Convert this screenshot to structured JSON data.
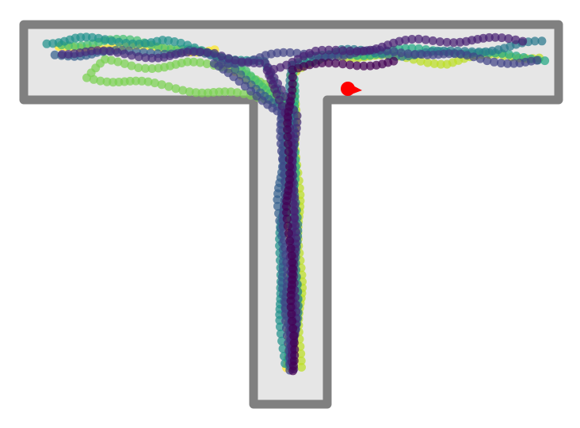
{
  "maze": {
    "shape": "T-maze",
    "wall_color": "#808080",
    "floor_color": "#e6e6e6"
  },
  "agent": {
    "marker": "red-dot-with-heading-arrow",
    "color": "#ff0000"
  },
  "colormap": "viridis",
  "trajectories": [
    {
      "c": "#fde725",
      "pts": [
        [
          0.36,
          0.05
        ],
        [
          0.42,
          0.32
        ],
        [
          0.4,
          0.58
        ],
        [
          0.36,
          0.85
        ],
        [
          0.36,
          0.93
        ],
        [
          0.35,
          0.965
        ],
        [
          0.25,
          0.965
        ],
        [
          0.15,
          0.975
        ],
        [
          0.05,
          0.965
        ]
      ]
    },
    {
      "c": "#bddf26",
      "pts": [
        [
          0.64,
          0.06
        ],
        [
          0.66,
          0.3
        ],
        [
          0.61,
          0.6
        ],
        [
          0.55,
          0.8
        ],
        [
          0.5,
          0.9
        ],
        [
          0.58,
          0.955
        ],
        [
          0.7,
          0.945
        ],
        [
          0.8,
          0.935
        ],
        [
          0.9,
          0.95
        ],
        [
          0.98,
          0.95
        ]
      ]
    },
    {
      "c": "#7ad151",
      "pts": [
        [
          0.5,
          0.05
        ],
        [
          0.58,
          0.3
        ],
        [
          0.48,
          0.6
        ],
        [
          0.45,
          0.85
        ],
        [
          0.4,
          0.92
        ],
        [
          0.3,
          0.93
        ],
        [
          0.2,
          0.925
        ],
        [
          0.14,
          0.935
        ],
        [
          0.1,
          0.9
        ],
        [
          0.16,
          0.86
        ]
      ]
    },
    {
      "c": "#44bf70",
      "pts": [
        [
          0.42,
          0.07
        ],
        [
          0.5,
          0.3
        ],
        [
          0.42,
          0.55
        ],
        [
          0.4,
          0.82
        ],
        [
          0.4,
          0.93
        ],
        [
          0.3,
          0.965
        ],
        [
          0.2,
          0.985
        ],
        [
          0.1,
          0.98
        ],
        [
          0.05,
          0.98
        ]
      ]
    },
    {
      "c": "#22a884",
      "pts": [
        [
          0.4,
          0.06
        ],
        [
          0.42,
          0.28
        ],
        [
          0.5,
          0.55
        ],
        [
          0.55,
          0.82
        ],
        [
          0.5,
          0.93
        ],
        [
          0.6,
          0.955
        ],
        [
          0.8,
          0.965
        ],
        [
          0.9,
          0.95
        ],
        [
          0.99,
          0.945
        ]
      ]
    },
    {
      "c": "#21918c",
      "pts": [
        [
          0.3,
          0.07
        ],
        [
          0.2,
          0.3
        ],
        [
          0.3,
          0.6
        ],
        [
          0.4,
          0.82
        ],
        [
          0.45,
          0.93
        ],
        [
          0.35,
          0.955
        ],
        [
          0.25,
          0.985
        ],
        [
          0.15,
          0.985
        ],
        [
          0.08,
          0.99
        ],
        [
          0.02,
          0.985
        ]
      ]
    },
    {
      "c": "#2a788e",
      "pts": [
        [
          0.5,
          0.06
        ],
        [
          0.6,
          0.3
        ],
        [
          0.55,
          0.55
        ],
        [
          0.45,
          0.8
        ],
        [
          0.5,
          0.93
        ],
        [
          0.6,
          0.96
        ],
        [
          0.7,
          0.955
        ],
        [
          0.8,
          0.955
        ],
        [
          0.9,
          0.97
        ],
        [
          0.99,
          0.98
        ]
      ]
    },
    {
      "c": "#355f8d",
      "pts": [
        [
          0.45,
          0.06
        ],
        [
          0.3,
          0.3
        ],
        [
          0.2,
          0.55
        ],
        [
          0.3,
          0.82
        ],
        [
          0.38,
          0.93
        ],
        [
          0.3,
          0.965
        ],
        [
          0.2,
          0.955
        ],
        [
          0.12,
          0.96
        ],
        [
          0.04,
          0.95
        ]
      ]
    },
    {
      "c": "#414487",
      "pts": [
        [
          0.4,
          0.05
        ],
        [
          0.35,
          0.3
        ],
        [
          0.3,
          0.6
        ],
        [
          0.25,
          0.82
        ],
        [
          0.35,
          0.93
        ],
        [
          0.45,
          0.95
        ],
        [
          0.6,
          0.955
        ],
        [
          0.75,
          0.96
        ],
        [
          0.88,
          0.94
        ],
        [
          0.98,
          0.935
        ]
      ]
    },
    {
      "c": "#472d7b",
      "pts": [
        [
          0.5,
          0.05
        ],
        [
          0.45,
          0.3
        ],
        [
          0.5,
          0.55
        ],
        [
          0.55,
          0.82
        ],
        [
          0.45,
          0.93
        ],
        [
          0.35,
          0.955
        ],
        [
          0.25,
          0.95
        ],
        [
          0.15,
          0.955
        ],
        [
          0.05,
          0.96
        ]
      ]
    },
    {
      "c": "#482173",
      "pts": [
        [
          0.5,
          0.06
        ],
        [
          0.55,
          0.3
        ],
        [
          0.5,
          0.6
        ],
        [
          0.4,
          0.8
        ],
        [
          0.45,
          0.92
        ],
        [
          0.55,
          0.955
        ],
        [
          0.65,
          0.97
        ],
        [
          0.75,
          0.985
        ],
        [
          0.85,
          0.99
        ],
        [
          0.95,
          0.985
        ]
      ]
    },
    {
      "c": "#440154",
      "pts": [
        [
          0.5,
          0.04
        ],
        [
          0.48,
          0.3
        ],
        [
          0.38,
          0.55
        ],
        [
          0.42,
          0.82
        ],
        [
          0.5,
          0.92
        ],
        [
          0.6,
          0.93
        ],
        [
          0.7,
          0.935
        ]
      ]
    }
  ]
}
